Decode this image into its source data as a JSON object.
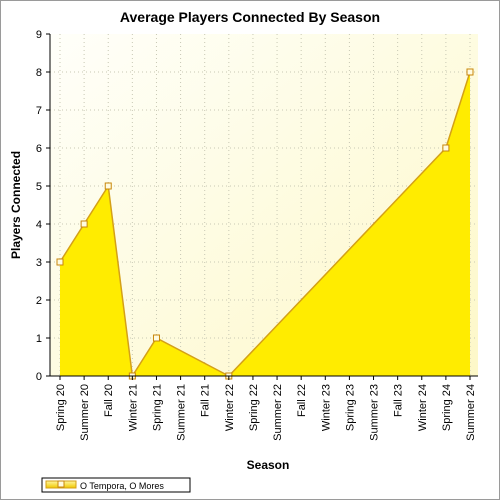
{
  "chart_data": {
    "type": "area",
    "title": "Average Players Connected By Season",
    "xlabel": "Season",
    "ylabel": "Players Connected",
    "categories": [
      "Spring 20",
      "Summer 20",
      "Fall 20",
      "Winter 21",
      "Spring 21",
      "Summer 21",
      "Fall 21",
      "Winter 22",
      "Spring 22",
      "Summer 22",
      "Fall 22",
      "Winter 23",
      "Spring 23",
      "Summer 23",
      "Fall 23",
      "Winter 24",
      "Spring 24",
      "Summer 24"
    ],
    "series": [
      {
        "name": "O Tempora, O Mores",
        "points": [
          {
            "category": "Spring 20",
            "value": 3
          },
          {
            "category": "Summer 20",
            "value": 4
          },
          {
            "category": "Fall 20",
            "value": 5
          },
          {
            "category": "Winter 21",
            "value": 0
          },
          {
            "category": "Spring 21",
            "value": 1
          },
          {
            "category": "Winter 22",
            "value": 0
          },
          {
            "category": "Spring 24",
            "value": 6
          },
          {
            "category": "Summer 24",
            "value": 8
          }
        ]
      }
    ],
    "ylim": [
      0,
      9
    ],
    "yticks": [
      "0",
      "1",
      "2",
      "3",
      "4",
      "5",
      "6",
      "7",
      "8",
      "9"
    ],
    "grid": true,
    "legend_position": "bottom-left",
    "colors": {
      "fill": "#ffec00",
      "line": "#d4a017",
      "marker_fill": "#fffbe0",
      "marker_stroke": "#c8860a",
      "plot_bg_light": "#fffffa",
      "plot_bg_warm": "#fdf8c8",
      "axis": "#000000",
      "grid": "#c8c8b4"
    }
  }
}
